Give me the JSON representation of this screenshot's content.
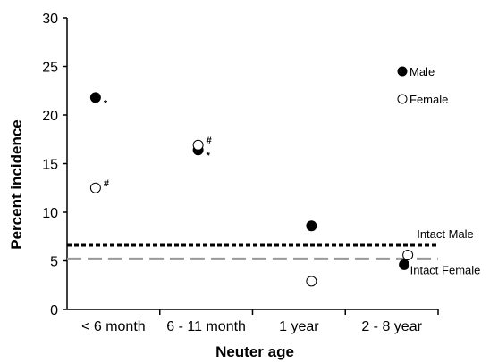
{
  "chart_data": {
    "type": "scatter",
    "xlabel": "Neuter age",
    "ylabel": "Percent incidence",
    "categories": [
      "< 6 month",
      "6 - 11 month",
      "1 year",
      "2 - 8 year"
    ],
    "ylim": [
      0,
      30
    ],
    "yticks": [
      0,
      5,
      10,
      15,
      20,
      25,
      30
    ],
    "series": [
      {
        "name": "Male",
        "marker": "filled-circle",
        "color": "#000000",
        "values": [
          21.8,
          16.4,
          8.6,
          4.6
        ],
        "annotations": [
          "*",
          "*",
          "",
          ""
        ]
      },
      {
        "name": "Female",
        "marker": "open-circle",
        "color": "#000000",
        "values": [
          12.5,
          16.9,
          2.9,
          5.6
        ],
        "annotations": [
          "#",
          "#",
          "",
          ""
        ]
      }
    ],
    "reference_lines": [
      {
        "label": "Intact Male",
        "value": 6.6,
        "style": "short-dash",
        "color": "#000000"
      },
      {
        "label": "Intact Female",
        "value": 5.2,
        "style": "long-dash",
        "color": "#999999"
      }
    ],
    "legend": {
      "placement": "top-right",
      "entries": [
        {
          "label": "Male",
          "marker": "filled-circle"
        },
        {
          "label": "Female",
          "marker": "open-circle"
        }
      ]
    },
    "grid": false
  }
}
